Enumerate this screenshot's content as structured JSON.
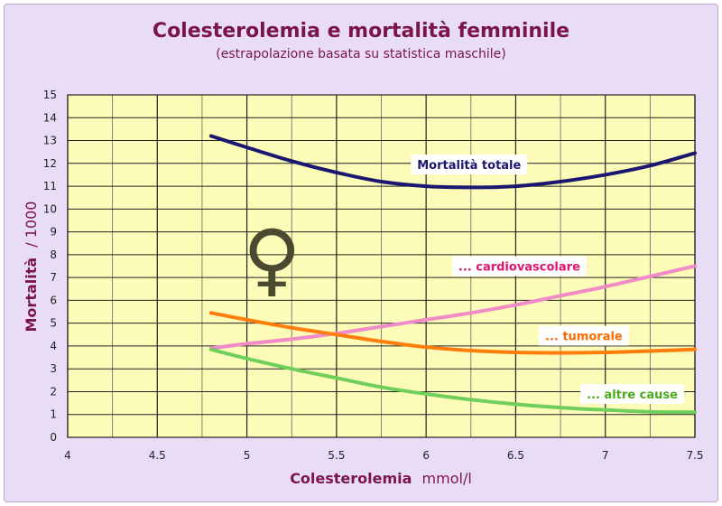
{
  "chart_data": {
    "type": "line",
    "title": "Colesterolemia e mortalità femminile",
    "subtitle": "(estrapolazione basata su statistica maschile)",
    "xlabel_bold": "Colesterolemia",
    "xlabel_unit": "mmol/l",
    "ylabel_bold": "Mortalità",
    "ylabel_unit": "/ 1000",
    "xlim": [
      4,
      7.5
    ],
    "ylim": [
      0,
      15
    ],
    "x_ticks": [
      "4",
      "4.5",
      "5",
      "5.5",
      "6",
      "6.5",
      "7",
      "7.5"
    ],
    "y_ticks": [
      "0",
      "1",
      "2",
      "3",
      "4",
      "5",
      "6",
      "7",
      "8",
      "9",
      "10",
      "11",
      "12",
      "13",
      "14",
      "15"
    ],
    "grid": true,
    "symbol": "♀",
    "colors": {
      "plot_bg": "#fdfbb8",
      "frame_bg": "#e9dcf6",
      "title": "#7a1548"
    },
    "series": [
      {
        "name": "Mortalità totale",
        "color": "#1b1670",
        "label_color": "#1b1670",
        "x": [
          4.8,
          5.0,
          5.25,
          5.5,
          5.75,
          6.0,
          6.25,
          6.5,
          6.75,
          7.0,
          7.25,
          7.5
        ],
        "y": [
          13.2,
          12.7,
          12.1,
          11.6,
          11.2,
          11.0,
          10.95,
          11.0,
          11.2,
          11.5,
          11.9,
          12.45
        ]
      },
      {
        "name": "... cardiovascolare",
        "color": "#f08ac8",
        "label_color": "#e0136e",
        "x": [
          4.8,
          5.0,
          5.25,
          5.5,
          5.75,
          6.0,
          6.25,
          6.5,
          6.75,
          7.0,
          7.25,
          7.5
        ],
        "y": [
          3.9,
          4.1,
          4.3,
          4.55,
          4.85,
          5.15,
          5.45,
          5.8,
          6.2,
          6.6,
          7.05,
          7.5
        ]
      },
      {
        "name": "... tumorale",
        "color": "#ff7d0a",
        "label_color": "#ff6a00",
        "x": [
          4.8,
          5.0,
          5.25,
          5.5,
          5.75,
          6.0,
          6.25,
          6.5,
          6.75,
          7.0,
          7.25,
          7.5
        ],
        "y": [
          5.45,
          5.15,
          4.8,
          4.5,
          4.2,
          3.95,
          3.8,
          3.72,
          3.7,
          3.72,
          3.78,
          3.85
        ]
      },
      {
        "name": "... altre cause",
        "color": "#6fcf5a",
        "label_color": "#4aaa1e",
        "x": [
          4.8,
          5.0,
          5.25,
          5.5,
          5.75,
          6.0,
          6.25,
          6.5,
          6.75,
          7.0,
          7.25,
          7.5
        ],
        "y": [
          3.85,
          3.45,
          3.0,
          2.6,
          2.2,
          1.9,
          1.65,
          1.45,
          1.3,
          1.2,
          1.12,
          1.1
        ]
      }
    ]
  }
}
